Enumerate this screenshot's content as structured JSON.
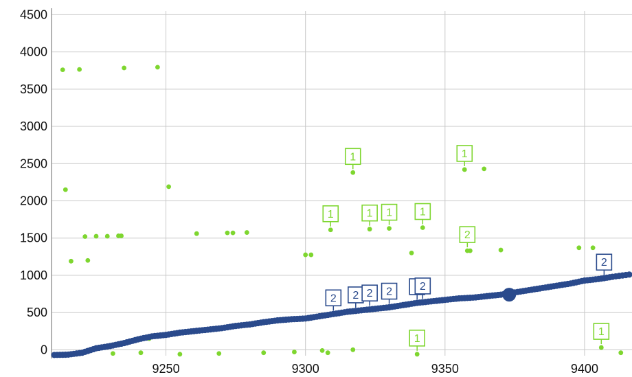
{
  "chart_data": {
    "type": "scatter",
    "title": "",
    "xlabel": "",
    "ylabel": "",
    "xlim": [
      9209,
      9417
    ],
    "ylim": [
      -80,
      4550
    ],
    "x_ticks": [
      9250,
      9300,
      9350,
      9400
    ],
    "x_tick_labels": [
      "9250",
      "9300",
      "9350",
      "9400"
    ],
    "y_ticks": [
      0,
      500,
      1000,
      1500,
      2000,
      2500,
      3000,
      3500,
      4000,
      4500
    ],
    "y_tick_labels": [
      "0",
      "500",
      "1000",
      "1500",
      "2000",
      "2500",
      "3000",
      "3500",
      "4000",
      "4500"
    ],
    "grid": true,
    "colors": {
      "green": "#7ed62f",
      "blue": "#2a4a8c",
      "grid": "#c8c8c8",
      "axis": "#9a9a9a"
    },
    "series": [
      {
        "values": [
          [
            9213,
            3760
          ],
          [
            9219,
            3765
          ],
          [
            9235,
            3785
          ],
          [
            9247,
            3795
          ],
          [
            9214,
            2150
          ],
          [
            9251,
            2190
          ],
          [
            9216,
            1190
          ],
          [
            9222,
            1200
          ],
          [
            9221,
            1520
          ],
          [
            9225,
            1525
          ],
          [
            9229,
            1525
          ],
          [
            9233,
            1530
          ],
          [
            9234,
            1530
          ],
          [
            9261,
            1560
          ],
          [
            9272,
            1570
          ],
          [
            9274,
            1570
          ],
          [
            9279,
            1575
          ],
          [
            9300,
            1275
          ],
          [
            9302,
            1275
          ],
          [
            9309,
            1610
          ],
          [
            9317,
            2380
          ],
          [
            9323,
            1620
          ],
          [
            9330,
            1630
          ],
          [
            9338,
            1300
          ],
          [
            9342,
            1640
          ],
          [
            9357,
            2420
          ],
          [
            9358,
            1330
          ],
          [
            9359,
            1330
          ],
          [
            9364,
            2430
          ],
          [
            9370,
            1340
          ],
          [
            9398,
            1370
          ],
          [
            9403,
            1370
          ],
          [
            9231,
            -50
          ],
          [
            9241,
            -40
          ],
          [
            9244,
            150
          ],
          [
            9255,
            -60
          ],
          [
            9269,
            -50
          ],
          [
            9285,
            -40
          ],
          [
            9296,
            -30
          ],
          [
            9306,
            -10
          ],
          [
            9308,
            -40
          ],
          [
            9317,
            0
          ],
          [
            9340,
            -60
          ],
          [
            9406,
            30
          ],
          [
            9413,
            -40
          ]
        ]
      },
      {
        "values": [
          [
            9210,
            -70
          ],
          [
            9215,
            -65
          ],
          [
            9220,
            -40
          ],
          [
            9225,
            20
          ],
          [
            9230,
            50
          ],
          [
            9235,
            90
          ],
          [
            9240,
            140
          ],
          [
            9245,
            180
          ],
          [
            9250,
            200
          ],
          [
            9255,
            230
          ],
          [
            9260,
            250
          ],
          [
            9265,
            270
          ],
          [
            9270,
            290
          ],
          [
            9275,
            320
          ],
          [
            9280,
            340
          ],
          [
            9285,
            370
          ],
          [
            9290,
            395
          ],
          [
            9295,
            410
          ],
          [
            9300,
            420
          ],
          [
            9305,
            450
          ],
          [
            9310,
            480
          ],
          [
            9315,
            510
          ],
          [
            9320,
            530
          ],
          [
            9325,
            550
          ],
          [
            9330,
            570
          ],
          [
            9335,
            600
          ],
          [
            9340,
            630
          ],
          [
            9345,
            650
          ],
          [
            9350,
            670
          ],
          [
            9355,
            690
          ],
          [
            9360,
            700
          ],
          [
            9365,
            720
          ],
          [
            9370,
            740
          ],
          [
            9375,
            770
          ],
          [
            9380,
            800
          ],
          [
            9385,
            830
          ],
          [
            9390,
            860
          ],
          [
            9395,
            890
          ],
          [
            9400,
            930
          ],
          [
            9405,
            950
          ],
          [
            9410,
            980
          ],
          [
            9416,
            1010
          ]
        ],
        "highlight": [
          9373,
          740
        ]
      }
    ],
    "annotations": [
      {
        "text": "1",
        "x": 9309,
        "y": 1610,
        "series": 0
      },
      {
        "text": "1",
        "x": 9317,
        "y": 2380,
        "series": 0
      },
      {
        "text": "1",
        "x": 9323,
        "y": 1620,
        "series": 0
      },
      {
        "text": "1",
        "x": 9330,
        "y": 1630,
        "series": 0
      },
      {
        "text": "1",
        "x": 9342,
        "y": 1640,
        "series": 0
      },
      {
        "text": "1",
        "x": 9357,
        "y": 2420,
        "series": 0
      },
      {
        "text": "2",
        "x": 9358,
        "y": 1330,
        "series": 0
      },
      {
        "text": "1",
        "x": 9340,
        "y": -60,
        "series": 0
      },
      {
        "text": "1",
        "x": 9406,
        "y": 30,
        "series": 0
      },
      {
        "text": "2",
        "x": 9310,
        "y": 480,
        "series": 1
      },
      {
        "text": "2",
        "x": 9318,
        "y": 520,
        "series": 1
      },
      {
        "text": "2",
        "x": 9323,
        "y": 545,
        "series": 1
      },
      {
        "text": "2",
        "x": 9330,
        "y": 570,
        "series": 1
      },
      {
        "text": "",
        "x": 9340,
        "y": 630,
        "series": 1
      },
      {
        "text": "2",
        "x": 9342,
        "y": 640,
        "series": 1
      },
      {
        "text": "2",
        "x": 9407,
        "y": 960,
        "series": 1
      }
    ]
  }
}
